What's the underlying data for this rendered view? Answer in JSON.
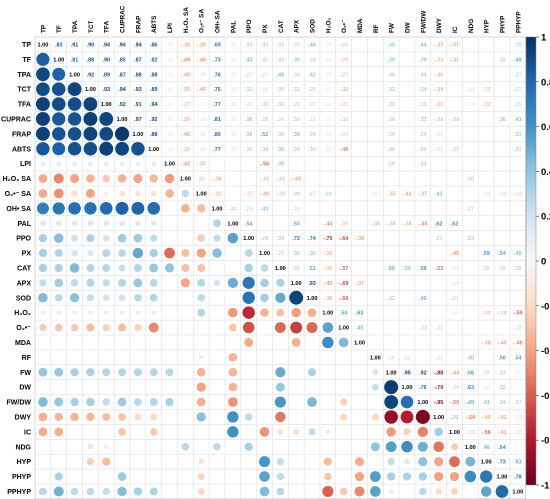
{
  "chart_data": {
    "type": "heatmap",
    "title": "",
    "variables": [
      "TP",
      "TF",
      "TPA",
      "TCT",
      "TFA",
      "CUPRAC",
      "FRAP",
      "ABTS",
      "LPI",
      "H₂O₂ SA",
      "O₂•⁻ SA",
      "OH• SA",
      "PAL",
      "PPO",
      "PX",
      "CAT",
      "APX",
      "SOD",
      "H₂O₂",
      "O₂•⁻",
      "MDA",
      "RF",
      "FW",
      "DW",
      "FW/DW",
      "DWY",
      "IC",
      "NDG",
      "HYP",
      "PHYP",
      "PPHYP"
    ],
    "lower_shape": "circle",
    "upper_shape": "number",
    "colorbar": {
      "min": -1,
      "max": 1,
      "ticks": [
        1,
        0.8,
        0.6,
        0.4,
        0.2,
        0,
        -0.2,
        -0.4,
        -0.6,
        -0.8,
        -1
      ],
      "low_color": "#67001f",
      "mid_color": "#f7f7f7",
      "high_color": "#053061",
      "position": "right"
    },
    "matrix": [
      [
        1,
        0.83,
        0.91,
        0.9,
        0.94,
        0.94,
        0.94,
        0.86,
        0.1,
        -0.38,
        -0.38,
        0.69,
        0.15,
        0.33,
        0.33,
        0.33,
        0.25,
        0.44,
        0.1,
        -0.26,
        0,
        0,
        0.39,
        0,
        0.44,
        -0.37,
        -0.37,
        0,
        0,
        0,
        0.29
      ],
      [
        0.83,
        1,
        0.81,
        0.88,
        0.9,
        0.85,
        0.87,
        0.82,
        0.1,
        -0.49,
        -0.46,
        0.73,
        0.15,
        0.43,
        0.31,
        0.33,
        0.36,
        0.28,
        0.1,
        -0.28,
        0,
        0,
        0.39,
        0,
        0.39,
        -0.34,
        -0.37,
        0,
        0,
        0.32,
        0.48
      ],
      [
        0.91,
        0.81,
        1,
        0.92,
        0.89,
        0.87,
        0.88,
        0.88,
        0.1,
        -0.4,
        -0.18,
        0.76,
        0.15,
        0.22,
        0.2,
        0.45,
        0.26,
        0.42,
        0.1,
        -0.27,
        0,
        0,
        0.33,
        0,
        0.34,
        -0.35,
        0,
        0,
        0,
        0,
        0.27
      ],
      [
        0.9,
        0.88,
        0.92,
        1,
        0.93,
        0.94,
        0.93,
        0.89,
        0.1,
        -0.35,
        -0.4,
        0.75,
        0.15,
        0.32,
        0.18,
        0.3,
        0.31,
        0.25,
        0.1,
        -0.32,
        0,
        0,
        0.33,
        0,
        0.34,
        -0.34,
        0,
        -0.15,
        -0.25,
        0,
        0.27
      ],
      [
        0.94,
        0.9,
        0.89,
        0.93,
        1,
        0.92,
        0.91,
        0.94,
        0.1,
        -0.27,
        -0.1,
        0.77,
        0.15,
        0.2,
        0.3,
        0.3,
        0.25,
        0.2,
        0.1,
        -0.25,
        0,
        0,
        0.3,
        0,
        0.26,
        -0.3,
        0,
        -0.1,
        -0.32,
        0,
        0.25
      ],
      [
        0.94,
        0.85,
        0.87,
        0.94,
        0.92,
        1,
        0.97,
        0.92,
        0.1,
        -0.35,
        -0.16,
        0.81,
        0.15,
        0.36,
        0.28,
        0.24,
        0.3,
        0.21,
        0.1,
        -0.31,
        0,
        0,
        0.3,
        0,
        0.37,
        -0.29,
        -0.29,
        0,
        0,
        0.36,
        0.43
      ],
      [
        0.94,
        0.87,
        0.88,
        0.93,
        0.91,
        0.97,
        1,
        0.88,
        0.1,
        -0.4,
        -0.15,
        0.8,
        0.15,
        0.36,
        0.52,
        0.3,
        0.38,
        0.28,
        0.1,
        -0.24,
        0,
        0,
        0.3,
        0,
        0.29,
        -0.21,
        0,
        0,
        0,
        0,
        0.33
      ],
      [
        0.86,
        0.82,
        0.88,
        0.89,
        0.94,
        0.92,
        0.88,
        1,
        0.1,
        -0.33,
        -0.16,
        0.77,
        0.15,
        0.26,
        0.34,
        0.38,
        0.29,
        0.3,
        0.1,
        -0.48,
        0,
        0,
        0.3,
        0,
        0.3,
        -0.21,
        -0.27,
        0,
        0,
        0,
        0.31
      ],
      [
        0.1,
        0.1,
        0.1,
        0.1,
        0.1,
        0.1,
        0.1,
        0.1,
        1,
        -0.43,
        -0.35,
        0,
        0,
        0,
        -0.56,
        0.4,
        0,
        0,
        0,
        0,
        0,
        0,
        0.29,
        0,
        0.33,
        0,
        0,
        0,
        0,
        0,
        0
      ],
      [
        -0.38,
        -0.49,
        -0.4,
        -0.35,
        -0.27,
        -0.35,
        -0.4,
        -0.33,
        -0.43,
        1,
        0.26,
        -0.36,
        0,
        0,
        -0.31,
        -0.31,
        -0.4,
        0,
        0,
        0,
        0,
        0,
        0,
        0,
        0,
        0,
        0,
        0.28,
        0,
        0,
        0
      ],
      [
        -0.38,
        -0.46,
        -0.18,
        -0.4,
        -0.1,
        -0.16,
        -0.15,
        -0.16,
        -0.35,
        0.26,
        1,
        -0.32,
        0,
        -0.27,
        -0.4,
        -0.3,
        0.3,
        0.27,
        0.3,
        0,
        0,
        -0.1,
        -0.35,
        -0.41,
        -0.37,
        0.42,
        0,
        0,
        -0.16,
        -0.23,
        -0.22
      ],
      [
        0.69,
        0.73,
        0.76,
        0.75,
        0.77,
        0.81,
        0.8,
        0.77,
        0,
        -0.36,
        -0.32,
        1,
        0.3,
        0.25,
        0.43,
        0,
        0.2,
        0,
        0,
        0,
        0,
        0,
        0,
        0,
        0,
        0,
        0,
        0.27,
        0,
        0,
        0
      ],
      [
        0.15,
        0.15,
        0.15,
        0.15,
        0.15,
        0.15,
        0.15,
        0.15,
        0,
        0,
        0,
        0.3,
        1,
        0.54,
        0,
        0,
        0.5,
        0,
        -0.44,
        -0.29,
        0,
        -0.35,
        -0.35,
        -0.35,
        -0.45,
        0.62,
        0.62,
        0,
        0,
        0,
        0
      ],
      [
        0.33,
        0.43,
        0.22,
        0.32,
        0.2,
        0.36,
        0.36,
        0.26,
        0,
        0,
        -0.27,
        0.25,
        0.54,
        1,
        0.29,
        0.34,
        0.72,
        0.74,
        -0.75,
        -0.64,
        -0.38,
        0,
        0,
        0,
        0,
        0.27,
        0,
        0.33,
        0,
        0,
        0
      ],
      [
        0.33,
        0.31,
        0.2,
        0.18,
        0.3,
        0.28,
        0.52,
        0.34,
        -0.56,
        -0.31,
        -0.4,
        0.43,
        0,
        0.29,
        1,
        0.27,
        0.35,
        0.35,
        -0.35,
        0,
        0,
        0,
        0,
        0,
        0,
        0,
        -0.45,
        0,
        0.59,
        0.54,
        0.45
      ],
      [
        0.33,
        0.33,
        0.45,
        0.3,
        0.3,
        0.24,
        0.3,
        0.38,
        0.4,
        -0.31,
        -0.3,
        0,
        0,
        0.34,
        0.27,
        1,
        0.32,
        0.51,
        -0.3,
        -0.57,
        0,
        0,
        0.5,
        0.39,
        0.59,
        -0.53,
        -0.16,
        0,
        0.25,
        0.26,
        0.29
      ],
      [
        0.25,
        0.36,
        0.26,
        0.31,
        0.25,
        0.3,
        0.38,
        0.29,
        0,
        -0.4,
        0.3,
        0.2,
        0.5,
        0.72,
        0.35,
        0.32,
        1,
        0.93,
        -0.42,
        -0.69,
        -0.37,
        0,
        0,
        0,
        0,
        0,
        -0.19,
        0,
        0,
        0,
        0
      ],
      [
        0.44,
        0.28,
        0.42,
        0.25,
        0.2,
        0.21,
        0.28,
        0.3,
        0,
        0,
        0.27,
        0,
        0,
        0.74,
        0.35,
        0.51,
        0.93,
        1,
        -0.36,
        -0.58,
        0,
        0,
        0.32,
        0,
        0.46,
        0,
        0.25,
        0,
        0,
        0,
        0
      ],
      [
        0.1,
        0.1,
        0.1,
        0.1,
        0.1,
        0.1,
        0.1,
        0.1,
        0,
        0,
        0.3,
        0,
        -0.44,
        -0.75,
        -0.35,
        -0.3,
        -0.42,
        -0.36,
        1,
        0.54,
        0.63,
        0,
        0,
        0,
        0,
        0,
        0.11,
        0,
        -0.32,
        -0.28,
        -0.59
      ],
      [
        -0.26,
        -0.28,
        -0.27,
        -0.32,
        -0.25,
        -0.31,
        -0.24,
        -0.48,
        0,
        0,
        0,
        0,
        -0.29,
        -0.64,
        0,
        -0.57,
        -0.69,
        -0.58,
        0.54,
        1,
        0.45,
        0,
        0,
        0,
        -0.24,
        -0.22,
        0,
        0,
        0,
        0,
        -0.27
      ],
      [
        0,
        0,
        0,
        0,
        0,
        0,
        0,
        0,
        0,
        0,
        0,
        0,
        0,
        -0.38,
        0,
        0,
        -0.37,
        0,
        0.63,
        0.45,
        1,
        0,
        0,
        0,
        0,
        0,
        0,
        0,
        -0.38,
        -0.4,
        -0.48
      ],
      [
        0,
        0,
        0,
        0,
        0,
        0,
        0,
        0,
        0,
        0,
        -0.1,
        0,
        -0.35,
        0,
        0,
        0,
        0,
        0,
        0,
        0,
        0,
        1,
        0.18,
        0.23,
        0,
        -0.23,
        0,
        0.4,
        0.03,
        0.56,
        0.54
      ],
      [
        0.39,
        0.39,
        0.33,
        0.33,
        0.3,
        0.3,
        0.3,
        0.3,
        0.29,
        0,
        -0.35,
        0,
        -0.35,
        0,
        0,
        0.5,
        0,
        0.32,
        0,
        0,
        0,
        0.18,
        1,
        0.95,
        0.92,
        -0.88,
        -0.43,
        0.56,
        0.25,
        0.33,
        0.1
      ],
      [
        0,
        0,
        0,
        0,
        0,
        0,
        0,
        0,
        0,
        0,
        -0.41,
        0,
        -0.35,
        0,
        0,
        0.39,
        0,
        0,
        0,
        0,
        0,
        0.23,
        0.95,
        1,
        0.76,
        -0.79,
        -0.24,
        0.63,
        0.14,
        0.32,
        0
      ],
      [
        0.44,
        0.39,
        0.34,
        0.34,
        0.26,
        0.37,
        0.29,
        0.3,
        0.33,
        0,
        -0.37,
        0,
        -0.45,
        0,
        0,
        0.59,
        0,
        0.46,
        0,
        -0.24,
        0,
        0,
        0.92,
        0.76,
        1,
        -0.95,
        -0.5,
        0.49,
        0.41,
        0.34,
        0.27
      ],
      [
        -0.37,
        -0.34,
        -0.35,
        -0.34,
        -0.3,
        -0.29,
        -0.21,
        -0.21,
        0,
        0,
        0.42,
        0,
        0.62,
        0.27,
        0,
        -0.53,
        0,
        0,
        0,
        -0.22,
        0,
        -0.23,
        -0.88,
        -0.79,
        -0.95,
        1,
        0.35,
        -0.54,
        -0.4,
        -0.41,
        -0.19
      ],
      [
        -0.37,
        -0.37,
        0,
        0,
        0,
        -0.29,
        0,
        -0.27,
        0,
        0,
        0,
        0,
        0.62,
        0,
        -0.45,
        -0.16,
        -0.19,
        0.25,
        0.11,
        0,
        0,
        0,
        -0.43,
        -0.24,
        -0.5,
        0.35,
        1,
        -0.25,
        -0.56,
        -0.41,
        -0.23
      ],
      [
        0,
        0,
        0,
        -0.15,
        -0.1,
        0,
        0,
        0,
        0,
        0.28,
        0,
        0.27,
        0,
        0.33,
        0,
        0,
        0,
        0,
        0,
        0,
        0,
        0.4,
        0.56,
        0.63,
        0.49,
        -0.54,
        -0.25,
        1,
        0.46,
        0.64,
        0
      ],
      [
        0,
        0,
        0,
        -0.25,
        -0.32,
        0,
        0,
        0,
        0,
        0,
        -0.16,
        0,
        0,
        0,
        0.59,
        0.25,
        0,
        0,
        -0.32,
        0,
        -0.38,
        0.03,
        0.25,
        0.14,
        0.41,
        -0.4,
        -0.56,
        0.46,
        1,
        0.73,
        0.53
      ],
      [
        0,
        0.32,
        0,
        0,
        0,
        0.36,
        0,
        0,
        0,
        0,
        -0.23,
        0,
        0,
        0,
        0.54,
        0.26,
        0,
        0,
        -0.28,
        0,
        -0.4,
        0.56,
        0.33,
        0.32,
        0.34,
        -0.41,
        -0.41,
        0.64,
        0.73,
        1,
        0.78
      ],
      [
        0.29,
        0.48,
        0.27,
        0.27,
        0.25,
        0.43,
        0.33,
        0.31,
        0,
        0,
        -0.22,
        0,
        0,
        0,
        0.45,
        0.29,
        0,
        0,
        -0.59,
        -0.27,
        -0.48,
        0.54,
        0.1,
        0,
        0.27,
        -0.19,
        -0.23,
        0,
        0.53,
        0.78,
        1
      ]
    ]
  }
}
